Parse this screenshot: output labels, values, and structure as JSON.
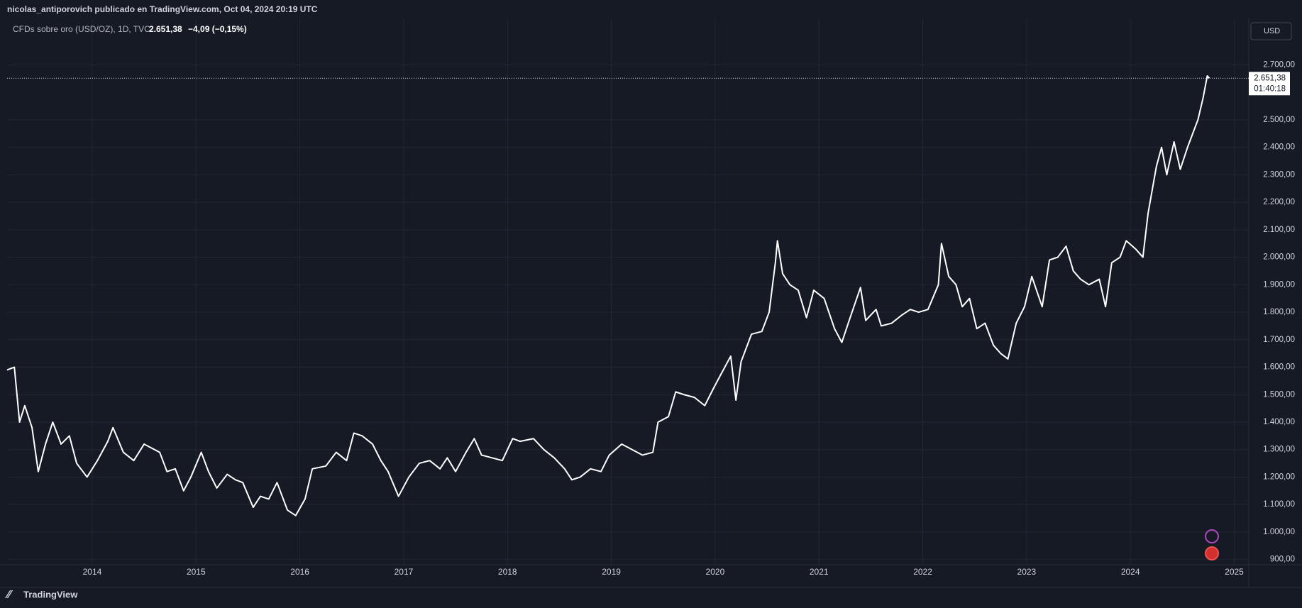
{
  "chart_data": {
    "type": "line",
    "publisher": "nicolas_antiporovich publicado en TradingView.com, Oct 04, 2024 20:19 UTC",
    "symbol": "CFDs sobre oro (USD/OZ), 1D, TVC",
    "price_label": "2.651,38",
    "change_label": "−4,09 (−0,15%)",
    "currency": "USD",
    "countdown": "01:40:18",
    "brand": "TradingView",
    "color": "#ffffff",
    "grid": true,
    "last_price": 2651.38,
    "x": [
      2013.18,
      2013.25,
      2013.3,
      2013.35,
      2013.42,
      2013.48,
      2013.55,
      2013.62,
      2013.7,
      2013.78,
      2013.85,
      2013.95,
      2014.05,
      2014.15,
      2014.2,
      2014.3,
      2014.4,
      2014.5,
      2014.55,
      2014.65,
      2014.72,
      2014.8,
      2014.88,
      2014.95,
      2015.05,
      2015.12,
      2015.2,
      2015.3,
      2015.38,
      2015.45,
      2015.55,
      2015.62,
      2015.7,
      2015.78,
      2015.88,
      2015.96,
      2016.05,
      2016.12,
      2016.25,
      2016.35,
      2016.45,
      2016.52,
      2016.6,
      2016.7,
      2016.78,
      2016.85,
      2016.95,
      2017.05,
      2017.15,
      2017.25,
      2017.35,
      2017.42,
      2017.5,
      2017.6,
      2017.68,
      2017.75,
      2017.85,
      2017.95,
      2018.05,
      2018.12,
      2018.25,
      2018.35,
      2018.45,
      2018.55,
      2018.62,
      2018.7,
      2018.8,
      2018.9,
      2018.98,
      2019.1,
      2019.2,
      2019.3,
      2019.4,
      2019.45,
      2019.55,
      2019.62,
      2019.7,
      2019.8,
      2019.9,
      2019.98,
      2020.05,
      2020.15,
      2020.2,
      2020.25,
      2020.35,
      2020.45,
      2020.52,
      2020.58,
      2020.6,
      2020.65,
      2020.72,
      2020.8,
      2020.88,
      2020.95,
      2021.05,
      2021.15,
      2021.22,
      2021.3,
      2021.4,
      2021.45,
      2021.55,
      2021.6,
      2021.7,
      2021.8,
      2021.88,
      2021.96,
      2022.05,
      2022.15,
      2022.18,
      2022.25,
      2022.32,
      2022.38,
      2022.45,
      2022.52,
      2022.6,
      2022.68,
      2022.75,
      2022.82,
      2022.9,
      2022.98,
      2023.05,
      2023.15,
      2023.22,
      2023.3,
      2023.38,
      2023.45,
      2023.52,
      2023.6,
      2023.7,
      2023.76,
      2023.82,
      2023.9,
      2023.96,
      2024.05,
      2024.12,
      2024.17,
      2024.25,
      2024.3,
      2024.35,
      2024.42,
      2024.48,
      2024.55,
      2024.6,
      2024.65,
      2024.7,
      2024.72,
      2024.74,
      2024.76
    ],
    "values": [
      1590,
      1600,
      1400,
      1460,
      1380,
      1220,
      1320,
      1400,
      1320,
      1350,
      1250,
      1200,
      1260,
      1330,
      1380,
      1290,
      1260,
      1320,
      1310,
      1290,
      1220,
      1230,
      1150,
      1200,
      1290,
      1220,
      1160,
      1210,
      1190,
      1180,
      1090,
      1130,
      1120,
      1180,
      1080,
      1060,
      1120,
      1230,
      1240,
      1290,
      1260,
      1360,
      1350,
      1320,
      1260,
      1220,
      1130,
      1200,
      1250,
      1260,
      1230,
      1270,
      1220,
      1290,
      1340,
      1280,
      1270,
      1260,
      1340,
      1330,
      1340,
      1300,
      1270,
      1230,
      1190,
      1200,
      1230,
      1220,
      1280,
      1320,
      1300,
      1280,
      1290,
      1400,
      1420,
      1510,
      1500,
      1490,
      1460,
      1520,
      1570,
      1640,
      1480,
      1620,
      1720,
      1730,
      1800,
      1980,
      2060,
      1940,
      1900,
      1880,
      1780,
      1880,
      1850,
      1740,
      1690,
      1780,
      1890,
      1770,
      1810,
      1750,
      1760,
      1790,
      1810,
      1800,
      1810,
      1900,
      2050,
      1930,
      1900,
      1820,
      1850,
      1740,
      1760,
      1680,
      1650,
      1630,
      1760,
      1820,
      1930,
      1820,
      1990,
      2000,
      2040,
      1950,
      1920,
      1900,
      1920,
      1820,
      1980,
      2000,
      2060,
      2030,
      2000,
      2160,
      2330,
      2400,
      2300,
      2420,
      2320,
      2400,
      2450,
      2500,
      2580,
      2620,
      2660,
      2651.38
    ],
    "xlim": [
      2013.18,
      2025.14
    ],
    "xticks": [
      2014,
      2015,
      2016,
      2017,
      2018,
      2019,
      2020,
      2021,
      2022,
      2023,
      2024,
      2025
    ],
    "ylim": [
      881,
      2869
    ],
    "yticks": [
      {
        "value": 900,
        "label": "900,00"
      },
      {
        "value": 1000,
        "label": "1.000,00"
      },
      {
        "value": 1100,
        "label": "1.100,00"
      },
      {
        "value": 1200,
        "label": "1.200,00"
      },
      {
        "value": 1300,
        "label": "1.300,00"
      },
      {
        "value": 1400,
        "label": "1.400,00"
      },
      {
        "value": 1500,
        "label": "1.500,00"
      },
      {
        "value": 1600,
        "label": "1.600,00"
      },
      {
        "value": 1700,
        "label": "1.700,00"
      },
      {
        "value": 1800,
        "label": "1.800,00"
      },
      {
        "value": 1900,
        "label": "1.900,00"
      },
      {
        "value": 2000,
        "label": "2.000,00"
      },
      {
        "value": 2100,
        "label": "2.100,00"
      },
      {
        "value": 2200,
        "label": "2.200,00"
      },
      {
        "value": 2300,
        "label": "2.300,00"
      },
      {
        "value": 2400,
        "label": "2.400,00"
      },
      {
        "value": 2500,
        "label": "2.500,00"
      },
      {
        "value": 2700,
        "label": "2.700,00"
      }
    ]
  }
}
